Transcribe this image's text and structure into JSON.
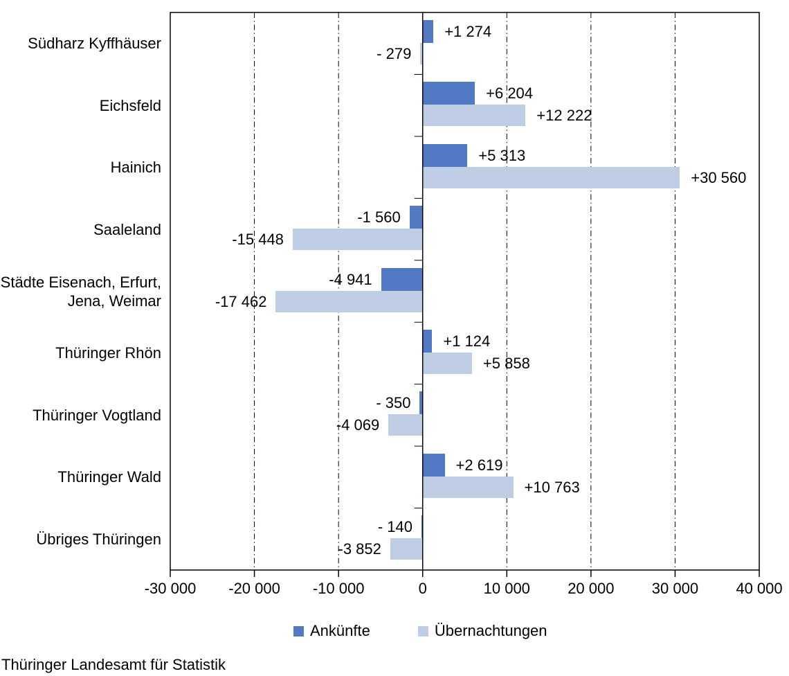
{
  "chart_data": {
    "type": "bar",
    "orientation": "horizontal",
    "title": "",
    "xlabel": "",
    "ylabel": "",
    "xlim": [
      -30000,
      40000
    ],
    "x_tick_step": 10000,
    "x_tick_labels": [
      "-30 000",
      "-20 000",
      "-10 000",
      "0",
      "10 000",
      "20 000",
      "30 000",
      "40 000"
    ],
    "grid": "vertical-dash-dot",
    "legend_position": "bottom",
    "categories": [
      "Südharz Kyffhäuser",
      "Eichsfeld",
      "Hainich",
      "Saaleland",
      "Städte Eisenach, Erfurt,\nJena, Weimar",
      "Thüringer Rhön",
      "Thüringer Vogtland",
      "Thüringer Wald",
      "Übriges Thüringen"
    ],
    "series": [
      {
        "name": "Ankünfte",
        "color": "#5179C4",
        "values": [
          1274,
          6204,
          5313,
          -1560,
          -4941,
          1124,
          -350,
          2619,
          -140
        ],
        "labels": [
          "+1 274",
          "+6 204",
          "+5 313",
          "-1 560",
          "-4 941",
          "+1 124",
          "- 350",
          "+2 619",
          "- 140"
        ]
      },
      {
        "name": "Übernachtungen",
        "color": "#BFCDE5",
        "values": [
          -279,
          12222,
          30560,
          -15448,
          -17462,
          5858,
          -4069,
          10763,
          -3852
        ],
        "labels": [
          "- 279",
          "+12 222",
          "+30 560",
          "-15 448",
          "-17 462",
          "+5 858",
          "-4 069",
          "+10 763",
          "-3 852"
        ]
      }
    ]
  },
  "footer": {
    "source": "Thüringer Landesamt für Statistik"
  }
}
